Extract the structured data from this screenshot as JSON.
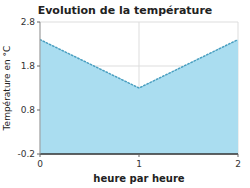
{
  "chart_data": {
    "type": "area",
    "title": "Evolution de la température",
    "xlabel": "heure par heure",
    "ylabel": "Température en °C",
    "x": [
      0,
      1,
      2
    ],
    "values": [
      2.4,
      1.3,
      2.4
    ],
    "color": "#aaddf0",
    "line_style": "dotted",
    "xlim": [
      0,
      2
    ],
    "ylim": [
      -0.2,
      2.8
    ],
    "xticks": [
      0,
      1,
      2
    ],
    "yticks": [
      -0.2,
      0.8,
      1.8,
      2.8
    ],
    "grid": true
  }
}
